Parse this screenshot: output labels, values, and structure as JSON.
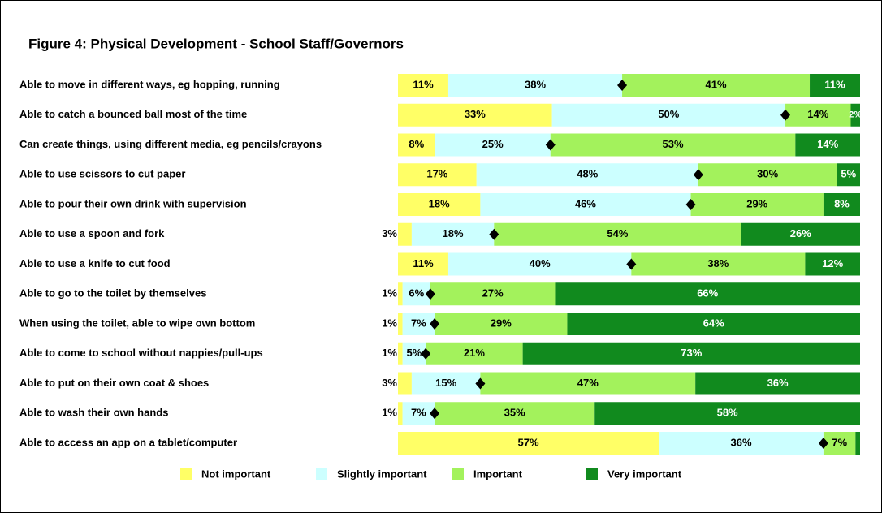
{
  "chart_data": {
    "type": "stacked_barh",
    "title": "Figure 4: Physical Development - School Staff/Governors",
    "categories": [
      "Able to move in different ways, eg hopping, running",
      "Able to catch a bounced ball most of the time",
      "Can create things, using different media, eg pencils/crayons",
      "Able to use scissors to cut paper",
      "Able to pour their own drink with supervision",
      "Able to use a spoon and fork",
      "Able to use a knife to cut food",
      "Able to go to the toilet by themselves",
      "When using the toilet, able to wipe own bottom",
      "Able to come to school without nappies/pull-ups",
      "Able to put on their own coat & shoes",
      "Able to wash their own hands",
      "Able to access an app on a tablet/computer"
    ],
    "series": [
      {
        "name": "Not important",
        "color": "#ffff66",
        "values": [
          11,
          33,
          8,
          17,
          18,
          3,
          11,
          1,
          1,
          1,
          3,
          1,
          57
        ],
        "value_labels": [
          "11%",
          "33%",
          "8%",
          "17%",
          "18%",
          "3%",
          "11%",
          "1%",
          "1%",
          "1%",
          "3%",
          "1%",
          "57%"
        ]
      },
      {
        "name": "Slightly important",
        "color": "#ccffff",
        "values": [
          38,
          50,
          25,
          48,
          46,
          18,
          40,
          6,
          7,
          5,
          15,
          7,
          36
        ],
        "value_labels": [
          "38%",
          "50%",
          "25%",
          "48%",
          "46%",
          "18%",
          "40%",
          "6%",
          "7%",
          "5%",
          "15%",
          "7%",
          "36%"
        ]
      },
      {
        "name": "Important",
        "color": "#a3f25c",
        "values": [
          41,
          14,
          53,
          30,
          29,
          54,
          38,
          27,
          29,
          21,
          47,
          35,
          7
        ],
        "value_labels": [
          "41%",
          "14%",
          "53%",
          "30%",
          "29%",
          "54%",
          "38%",
          "27%",
          "29%",
          "21%",
          "47%",
          "35%",
          "7%"
        ]
      },
      {
        "name": "Very important",
        "color": "#118a1e",
        "values": [
          11,
          2,
          14,
          5,
          8,
          26,
          12,
          66,
          64,
          73,
          36,
          58,
          1
        ],
        "value_labels": [
          "11%",
          "2%",
          "14%",
          "5%",
          "8%",
          "26%",
          "12%",
          "66%",
          "64%",
          "73%",
          "36%",
          "58%",
          null
        ]
      }
    ]
  }
}
